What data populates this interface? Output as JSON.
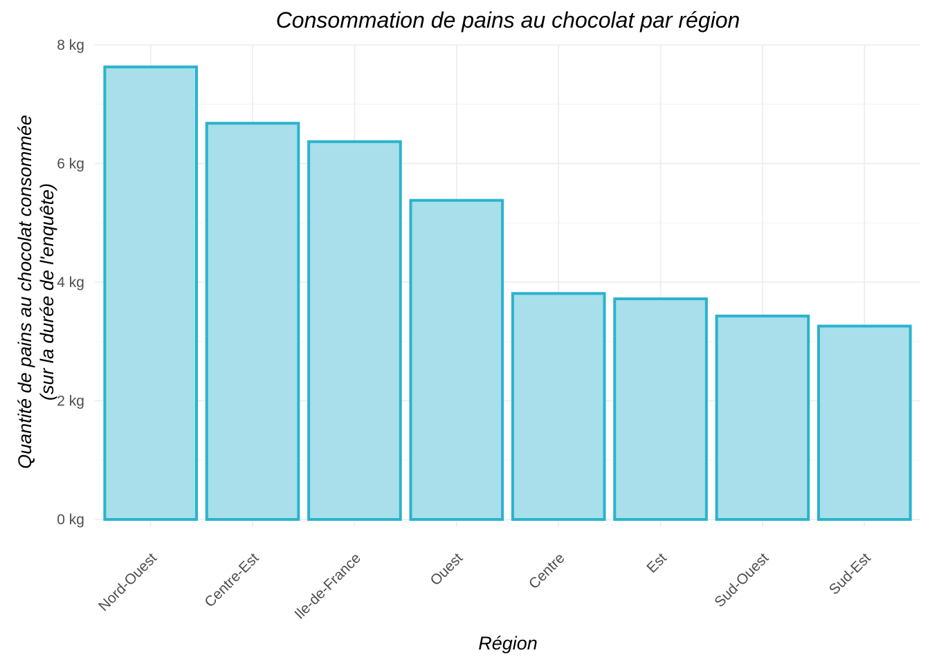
{
  "chart_data": {
    "type": "bar",
    "title": "Consommation de pains au chocolat par région",
    "xlabel": "Région",
    "ylabel_lines": [
      "Quantité de pains au chocolat consommée",
      "(sur la durée de l'enquête)"
    ],
    "categories": [
      "Nord-Ouest",
      "Centre-Est",
      "Ile-de-France",
      "Ouest",
      "Centre",
      "Est",
      "Sud-Ouest",
      "Sud-Est"
    ],
    "values": [
      7.63,
      6.68,
      6.37,
      5.38,
      3.81,
      3.72,
      3.43,
      3.26
    ],
    "ylim": [
      0,
      8
    ],
    "yticks": [
      0,
      2,
      4,
      6,
      8
    ],
    "ytick_labels": [
      "0 kg",
      "2 kg",
      "4 kg",
      "6 kg",
      "8 kg"
    ],
    "unit": "kg",
    "grid": true,
    "legend": "none",
    "colors": {
      "bar_fill": "#a8dfea",
      "bar_stroke": "#2ab3cd"
    }
  }
}
